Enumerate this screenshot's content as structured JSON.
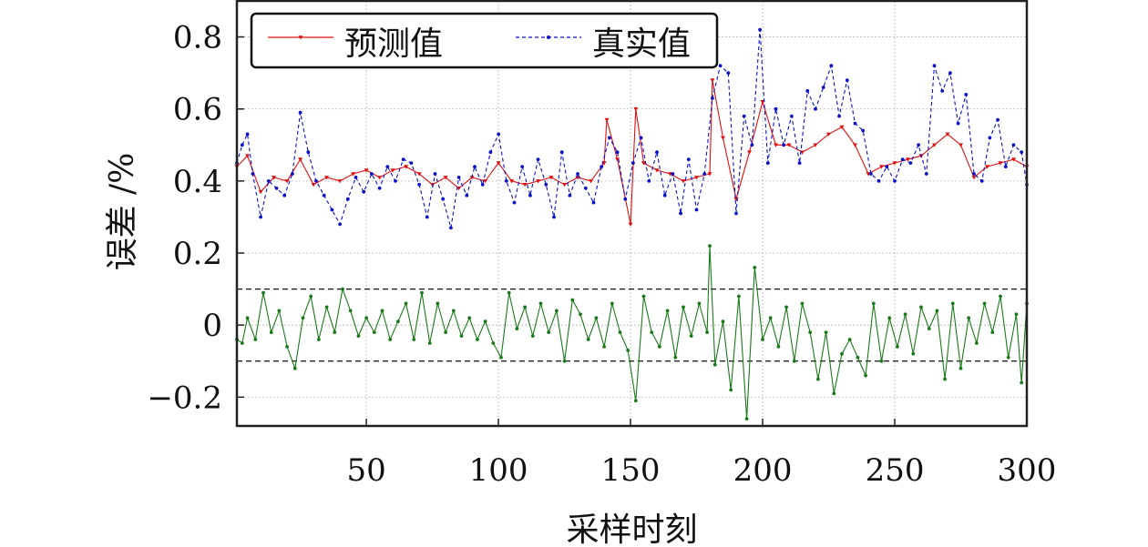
{
  "chart_data": {
    "type": "line",
    "xlabel": "采样时刻",
    "ylabel": "误差 /%",
    "xlim": [
      1,
      300
    ],
    "ylim": [
      -0.28,
      0.9
    ],
    "x_ticks": [
      50,
      100,
      150,
      200,
      250,
      300
    ],
    "x_tick_labels": [
      "50",
      "100",
      "150",
      "200",
      "250",
      "300"
    ],
    "y_ticks": [
      -0.2,
      0,
      0.2,
      0.4,
      0.6,
      0.8
    ],
    "y_tick_labels": [
      "−0.2",
      "0",
      "0.2",
      "0.4",
      "0.6",
      "0.8"
    ],
    "grid": true,
    "legend_position": "top-left",
    "reference_lines": [
      0.1,
      -0.1
    ],
    "colors": {
      "predicted": "#e01010",
      "actual": "#0a10c8",
      "error": "#1a7a1a"
    },
    "series": [
      {
        "name": "预测值",
        "x": [
          1,
          5,
          10,
          15,
          20,
          25,
          30,
          35,
          40,
          45,
          50,
          55,
          60,
          65,
          70,
          75,
          80,
          85,
          90,
          95,
          100,
          105,
          110,
          115,
          120,
          125,
          130,
          135,
          140,
          141,
          145,
          150,
          152,
          155,
          160,
          165,
          170,
          175,
          180,
          181,
          185,
          190,
          195,
          200,
          205,
          210,
          215,
          220,
          225,
          230,
          235,
          240,
          245,
          250,
          255,
          260,
          265,
          270,
          275,
          280,
          285,
          290,
          295,
          300
        ],
        "values": [
          0.44,
          0.47,
          0.37,
          0.41,
          0.4,
          0.46,
          0.39,
          0.41,
          0.4,
          0.42,
          0.43,
          0.41,
          0.43,
          0.44,
          0.42,
          0.39,
          0.41,
          0.38,
          0.41,
          0.4,
          0.45,
          0.4,
          0.39,
          0.4,
          0.41,
          0.39,
          0.41,
          0.4,
          0.45,
          0.57,
          0.46,
          0.28,
          0.6,
          0.45,
          0.43,
          0.42,
          0.4,
          0.41,
          0.42,
          0.68,
          0.52,
          0.35,
          0.48,
          0.62,
          0.5,
          0.5,
          0.48,
          0.5,
          0.53,
          0.55,
          0.5,
          0.42,
          0.44,
          0.45,
          0.46,
          0.47,
          0.5,
          0.53,
          0.5,
          0.41,
          0.44,
          0.45,
          0.46,
          0.44
        ]
      },
      {
        "name": "真实值",
        "x": [
          1,
          3,
          5,
          7,
          10,
          13,
          16,
          19,
          22,
          25,
          28,
          31,
          34,
          37,
          40,
          43,
          46,
          49,
          52,
          55,
          58,
          61,
          64,
          67,
          70,
          73,
          76,
          79,
          82,
          85,
          88,
          91,
          94,
          97,
          100,
          103,
          106,
          109,
          112,
          115,
          118,
          121,
          124,
          127,
          130,
          133,
          136,
          139,
          142,
          145,
          148,
          151,
          154,
          157,
          160,
          163,
          166,
          169,
          172,
          175,
          178,
          181,
          184,
          187,
          190,
          193,
          196,
          199,
          202,
          205,
          208,
          211,
          214,
          217,
          220,
          223,
          226,
          229,
          232,
          235,
          238,
          241,
          244,
          247,
          250,
          253,
          256,
          259,
          262,
          265,
          268,
          271,
          274,
          277,
          280,
          283,
          286,
          289,
          292,
          295,
          298,
          300
        ],
        "values": [
          0.45,
          0.5,
          0.53,
          0.42,
          0.3,
          0.4,
          0.38,
          0.36,
          0.42,
          0.59,
          0.48,
          0.4,
          0.36,
          0.32,
          0.28,
          0.35,
          0.41,
          0.37,
          0.42,
          0.38,
          0.44,
          0.4,
          0.46,
          0.45,
          0.39,
          0.3,
          0.42,
          0.35,
          0.27,
          0.41,
          0.36,
          0.44,
          0.39,
          0.48,
          0.53,
          0.4,
          0.34,
          0.44,
          0.36,
          0.46,
          0.39,
          0.3,
          0.48,
          0.36,
          0.42,
          0.38,
          0.34,
          0.44,
          0.52,
          0.48,
          0.35,
          0.45,
          0.52,
          0.4,
          0.48,
          0.36,
          0.42,
          0.31,
          0.46,
          0.32,
          0.42,
          0.63,
          0.72,
          0.7,
          0.31,
          0.58,
          0.5,
          0.82,
          0.45,
          0.6,
          0.5,
          0.58,
          0.45,
          0.65,
          0.6,
          0.66,
          0.72,
          0.58,
          0.68,
          0.56,
          0.54,
          0.42,
          0.4,
          0.44,
          0.4,
          0.46,
          0.45,
          0.5,
          0.42,
          0.72,
          0.65,
          0.7,
          0.56,
          0.64,
          0.42,
          0.4,
          0.52,
          0.57,
          0.44,
          0.5,
          0.48,
          0.39
        ]
      },
      {
        "name": "",
        "x": [
          1,
          3,
          5,
          8,
          11,
          14,
          17,
          20,
          23,
          26,
          29,
          32,
          35,
          38,
          41,
          44,
          47,
          50,
          53,
          56,
          59,
          62,
          65,
          68,
          71,
          74,
          77,
          80,
          83,
          86,
          89,
          92,
          95,
          98,
          101,
          104,
          107,
          110,
          113,
          116,
          119,
          122,
          125,
          128,
          131,
          134,
          137,
          140,
          143,
          146,
          149,
          152,
          155,
          158,
          161,
          164,
          167,
          170,
          173,
          176,
          179,
          180,
          182,
          185,
          188,
          191,
          194,
          197,
          200,
          203,
          206,
          209,
          212,
          215,
          218,
          221,
          224,
          227,
          230,
          233,
          236,
          239,
          242,
          245,
          248,
          251,
          254,
          257,
          260,
          263,
          266,
          269,
          272,
          275,
          278,
          281,
          284,
          287,
          290,
          293,
          296,
          298,
          300
        ],
        "values": [
          -0.04,
          -0.05,
          0.02,
          -0.04,
          0.09,
          -0.02,
          0.04,
          -0.06,
          -0.12,
          0.02,
          0.08,
          -0.04,
          0.05,
          -0.02,
          0.1,
          0.04,
          -0.03,
          0.02,
          -0.02,
          0.04,
          -0.04,
          0.01,
          0.06,
          -0.04,
          0.09,
          -0.05,
          0.06,
          -0.02,
          0.04,
          -0.03,
          0.02,
          -0.04,
          0.01,
          -0.05,
          -0.09,
          0.09,
          -0.01,
          0.05,
          -0.03,
          0.06,
          -0.02,
          0.04,
          -0.1,
          0.07,
          0.03,
          -0.04,
          0.02,
          -0.06,
          0.06,
          -0.02,
          -0.07,
          -0.21,
          0.08,
          -0.02,
          -0.06,
          0.04,
          -0.09,
          0.05,
          -0.03,
          0.06,
          -0.02,
          0.22,
          -0.11,
          0.01,
          -0.18,
          0.08,
          -0.26,
          0.16,
          -0.04,
          0.02,
          -0.06,
          0.05,
          -0.1,
          0.06,
          -0.02,
          -0.15,
          -0.02,
          -0.19,
          -0.08,
          -0.04,
          -0.09,
          -0.14,
          0.06,
          -0.1,
          0.02,
          -0.06,
          0.03,
          -0.08,
          0.05,
          -0.01,
          0.04,
          -0.15,
          0.06,
          -0.12,
          0.02,
          -0.05,
          0.06,
          -0.02,
          0.08,
          -0.09,
          0.03,
          -0.16,
          0.06
        ]
      }
    ]
  }
}
